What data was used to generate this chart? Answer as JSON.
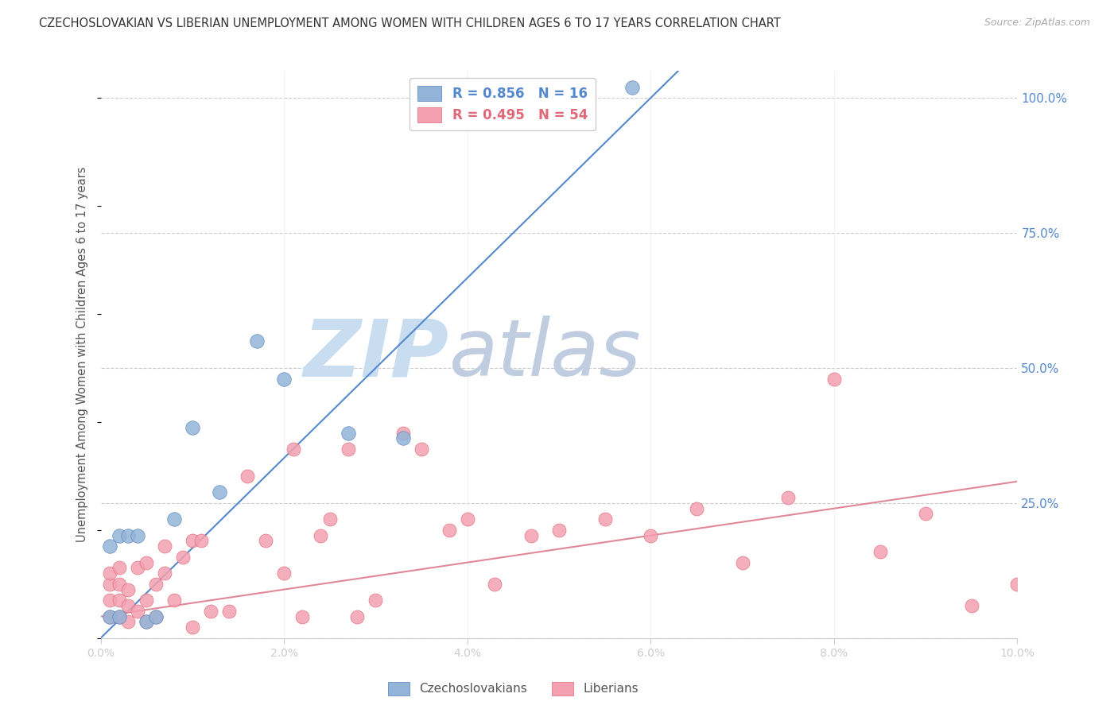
{
  "title": "CZECHOSLOVAKIAN VS LIBERIAN UNEMPLOYMENT AMONG WOMEN WITH CHILDREN AGES 6 TO 17 YEARS CORRELATION CHART",
  "source": "Source: ZipAtlas.com",
  "ylabel": "Unemployment Among Women with Children Ages 6 to 17 years",
  "x_min": 0.0,
  "x_max": 0.1,
  "y_min": 0.0,
  "y_max": 1.05,
  "right_yticks": [
    0.0,
    0.25,
    0.5,
    0.75,
    1.0
  ],
  "right_yticklabels": [
    "",
    "25.0%",
    "50.0%",
    "75.0%",
    "100.0%"
  ],
  "bottom_xticks": [
    0.0,
    0.02,
    0.04,
    0.06,
    0.08,
    0.1
  ],
  "bottom_xticklabels": [
    "0.0%",
    "2.0%",
    "4.0%",
    "6.0%",
    "8.0%",
    "10.0%"
  ],
  "czech_color": "#92b4d8",
  "liberian_color": "#f4a0b0",
  "czech_edge_color": "#5580bb",
  "liberian_edge_color": "#e06878",
  "czech_R": 0.856,
  "czech_N": 16,
  "liberian_R": 0.495,
  "liberian_N": 54,
  "czech_line_x": [
    0.0,
    0.063
  ],
  "czech_line_y": [
    0.0,
    1.05
  ],
  "liberian_line_x": [
    0.0,
    0.1
  ],
  "liberian_line_y": [
    0.04,
    0.29
  ],
  "czech_points_x": [
    0.001,
    0.001,
    0.002,
    0.002,
    0.003,
    0.004,
    0.005,
    0.006,
    0.008,
    0.01,
    0.013,
    0.017,
    0.02,
    0.027,
    0.033,
    0.058
  ],
  "czech_points_y": [
    0.04,
    0.17,
    0.04,
    0.19,
    0.19,
    0.19,
    0.03,
    0.04,
    0.22,
    0.39,
    0.27,
    0.55,
    0.48,
    0.38,
    0.37,
    1.02
  ],
  "liberian_points_x": [
    0.001,
    0.001,
    0.001,
    0.001,
    0.002,
    0.002,
    0.002,
    0.002,
    0.003,
    0.003,
    0.003,
    0.004,
    0.004,
    0.005,
    0.005,
    0.005,
    0.006,
    0.006,
    0.007,
    0.007,
    0.008,
    0.009,
    0.01,
    0.01,
    0.011,
    0.012,
    0.014,
    0.016,
    0.018,
    0.02,
    0.021,
    0.022,
    0.024,
    0.025,
    0.027,
    0.028,
    0.03,
    0.033,
    0.035,
    0.038,
    0.04,
    0.043,
    0.047,
    0.05,
    0.055,
    0.06,
    0.065,
    0.07,
    0.075,
    0.08,
    0.085,
    0.09,
    0.095,
    0.1
  ],
  "liberian_points_y": [
    0.04,
    0.07,
    0.1,
    0.12,
    0.04,
    0.07,
    0.1,
    0.13,
    0.03,
    0.06,
    0.09,
    0.05,
    0.13,
    0.03,
    0.07,
    0.14,
    0.04,
    0.1,
    0.12,
    0.17,
    0.07,
    0.15,
    0.02,
    0.18,
    0.18,
    0.05,
    0.05,
    0.3,
    0.18,
    0.12,
    0.35,
    0.04,
    0.19,
    0.22,
    0.35,
    0.04,
    0.07,
    0.38,
    0.35,
    0.2,
    0.22,
    0.1,
    0.19,
    0.2,
    0.22,
    0.19,
    0.24,
    0.14,
    0.26,
    0.48,
    0.16,
    0.23,
    0.06,
    0.1
  ],
  "watermark_zip": "ZIP",
  "watermark_atlas": "atlas",
  "watermark_color_zip": "#c8ddf0",
  "watermark_color_atlas": "#c0cce0",
  "background_color": "#ffffff",
  "grid_color": "#cccccc",
  "title_color": "#333333",
  "right_axis_color": "#5588cc",
  "axis_color": "#cccccc"
}
